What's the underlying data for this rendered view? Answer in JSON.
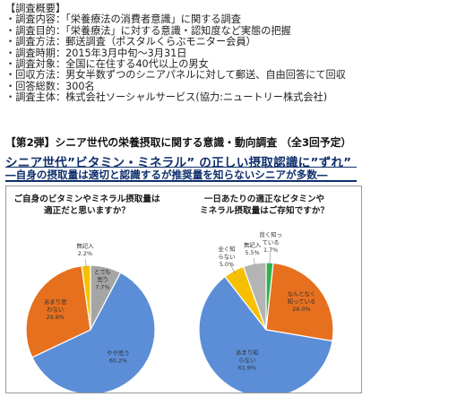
{
  "outline": {
    "lines": [
      "【調査概要】",
      "・調査内容：「栄養療法の消費者意識」に関する調査",
      "・調査目的：「栄養療法」に対する意識・認知度など実態の把握",
      "・調査方法：郵送調査（ポスタルくらぶモニター会員）",
      "・調査時期：2015年3月中旬〜3月31日",
      "・調査対象：全国に在住する40代以上の男女",
      "・回収方法：男女半数ずつのシニアパネルに対して郵送、自由回答にて回収",
      "・回答総数：300名",
      "・調査主体：株式会社ソーシャルサービス(協力:ニュートリー株式会社)"
    ]
  },
  "series_title": "【第2弾】シニア世代の栄養摂取に関する意識・動向調査 （全3回予定）",
  "headline": "シニア世代”ビタミン・ミネラル” の正しい摂取認識に”ずれ”",
  "subhead": "―自身の摂取量は適切と認識するが推奨量を知らないシニアが多数―",
  "chart_data": [
    {
      "type": "pie",
      "title_lines": [
        "ご自身のビタミンやミネラル摂取量は",
        "適正だと思いますか？"
      ],
      "slices": [
        {
          "label": "とても思う",
          "value": 7.7,
          "display": "7.7%",
          "color": "#a5a5a5"
        },
        {
          "label": "やや思う",
          "value": 60.2,
          "display": "60.2%",
          "color": "#5b8ed6"
        },
        {
          "label": "あまり思わない",
          "value": 29.8,
          "display": "29.8%",
          "color": "#e7701e"
        },
        {
          "label": "無記入",
          "value": 2.2,
          "display": "2.2%",
          "color": "#f6c000"
        }
      ]
    },
    {
      "type": "pie",
      "title_lines": [
        "一日あたりの適正なビタミンや",
        "ミネラル摂取量はご存知ですか？"
      ],
      "slices": [
        {
          "label": "良く知っている",
          "value": 1.7,
          "display": "1.7%",
          "color": "#2fb24a"
        },
        {
          "label": "なんとなく知っている",
          "value": 26.0,
          "display": "26.0%",
          "color": "#e7701e"
        },
        {
          "label": "あまり知らない",
          "value": 61.9,
          "display": "61.9%",
          "color": "#5b8ed6"
        },
        {
          "label": "全く知らない",
          "value": 5.0,
          "display": "5.0%",
          "color": "#f6c000"
        },
        {
          "label": "無記入",
          "value": 5.5,
          "display": "5.5%",
          "color": "#b4b4b4"
        }
      ]
    }
  ]
}
